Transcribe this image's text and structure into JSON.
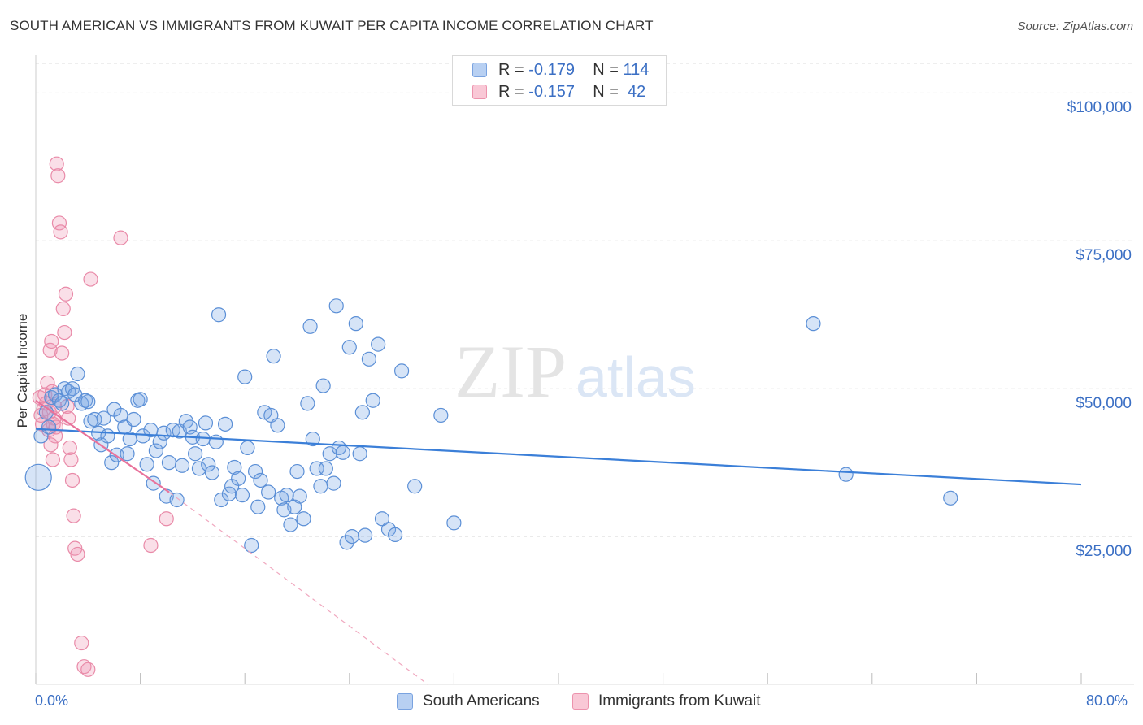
{
  "title": "SOUTH AMERICAN VS IMMIGRANTS FROM KUWAIT PER CAPITA INCOME CORRELATION CHART",
  "source": "Source: ZipAtlas.com",
  "watermark": {
    "zip": "ZIP",
    "atlas": "atlas"
  },
  "legend": {
    "r_label": "R =",
    "n_label": "N =",
    "series": [
      {
        "r": "-0.179",
        "n": "114",
        "fill": "#b8d0f2",
        "stroke": "#7aa3e0"
      },
      {
        "r": "-0.157",
        "n": "42",
        "fill": "#f9c8d6",
        "stroke": "#ec93ad"
      }
    ]
  },
  "bottom_legend": {
    "south": "South Americans",
    "kuwait": "Immigrants from Kuwait"
  },
  "colors": {
    "blue": "#3b7fd8",
    "blue_fill": "rgba(120,165,230,0.30)",
    "blue_stroke": "#5b8fd6",
    "pink": "#e8729b",
    "pink_fill": "rgba(240,150,180,0.30)",
    "pink_stroke": "#e98aa8",
    "axis_text": "#3b6fc4"
  },
  "chart_data": {
    "type": "scatter",
    "title": "SOUTH AMERICAN VS IMMIGRANTS FROM KUWAIT PER CAPITA INCOME CORRELATION CHART",
    "xlabel": "",
    "ylabel": "Per Capita Income",
    "xlim": [
      0,
      80
    ],
    "ylim": [
      0,
      105000
    ],
    "x_tick_labels": {
      "min": "0.0%",
      "max": "80.0%"
    },
    "y_ticks": [
      {
        "value": 25000,
        "label": "$25,000"
      },
      {
        "value": 50000,
        "label": "$50,000"
      },
      {
        "value": 75000,
        "label": "$75,000"
      },
      {
        "value": 100000,
        "label": "$100,000"
      }
    ],
    "series": [
      {
        "name": "South Americans",
        "r": -0.179,
        "n": 114,
        "trend": {
          "x0": 0,
          "y0": 43200,
          "x1": 80,
          "y1": 33800
        },
        "points": [
          [
            0.2,
            35000
          ],
          [
            0.4,
            42000
          ],
          [
            0.8,
            46000
          ],
          [
            1.0,
            43500
          ],
          [
            1.2,
            48500
          ],
          [
            1.5,
            49000
          ],
          [
            1.8,
            48000
          ],
          [
            2.0,
            47500
          ],
          [
            2.2,
            50000
          ],
          [
            2.5,
            49500
          ],
          [
            2.8,
            50000
          ],
          [
            3.0,
            49000
          ],
          [
            3.2,
            52500
          ],
          [
            3.5,
            47500
          ],
          [
            3.8,
            48000
          ],
          [
            4.0,
            47800
          ],
          [
            4.2,
            44500
          ],
          [
            4.5,
            44800
          ],
          [
            4.8,
            42500
          ],
          [
            5.0,
            40500
          ],
          [
            5.2,
            45000
          ],
          [
            5.5,
            42000
          ],
          [
            5.8,
            37500
          ],
          [
            6.0,
            46500
          ],
          [
            6.2,
            38800
          ],
          [
            6.5,
            45500
          ],
          [
            6.8,
            43500
          ],
          [
            7.0,
            39000
          ],
          [
            7.2,
            41500
          ],
          [
            7.5,
            44800
          ],
          [
            7.8,
            48000
          ],
          [
            8.0,
            48200
          ],
          [
            8.2,
            42000
          ],
          [
            8.5,
            37200
          ],
          [
            8.8,
            43000
          ],
          [
            9.0,
            34000
          ],
          [
            9.2,
            39500
          ],
          [
            9.5,
            41000
          ],
          [
            9.8,
            42500
          ],
          [
            10.0,
            31800
          ],
          [
            10.2,
            37500
          ],
          [
            10.5,
            43000
          ],
          [
            10.8,
            31200
          ],
          [
            11.0,
            42800
          ],
          [
            11.2,
            37000
          ],
          [
            11.5,
            44500
          ],
          [
            11.8,
            43500
          ],
          [
            12.0,
            41800
          ],
          [
            12.2,
            39000
          ],
          [
            12.5,
            36500
          ],
          [
            12.8,
            41500
          ],
          [
            13.0,
            44200
          ],
          [
            13.2,
            37200
          ],
          [
            13.5,
            35800
          ],
          [
            13.8,
            41000
          ],
          [
            14.0,
            62500
          ],
          [
            14.2,
            31200
          ],
          [
            14.5,
            44000
          ],
          [
            14.8,
            32200
          ],
          [
            15.0,
            33500
          ],
          [
            15.2,
            36700
          ],
          [
            15.5,
            34800
          ],
          [
            15.8,
            32000
          ],
          [
            16.0,
            52000
          ],
          [
            16.2,
            40000
          ],
          [
            16.5,
            23500
          ],
          [
            16.8,
            36000
          ],
          [
            17.0,
            30000
          ],
          [
            17.2,
            34500
          ],
          [
            17.5,
            46000
          ],
          [
            17.8,
            32500
          ],
          [
            18.0,
            45500
          ],
          [
            18.2,
            55500
          ],
          [
            18.5,
            43800
          ],
          [
            18.8,
            31500
          ],
          [
            19.0,
            29500
          ],
          [
            19.2,
            32000
          ],
          [
            19.5,
            27000
          ],
          [
            19.8,
            30000
          ],
          [
            20.0,
            36000
          ],
          [
            20.2,
            31800
          ],
          [
            20.5,
            28000
          ],
          [
            20.8,
            47500
          ],
          [
            21.0,
            60500
          ],
          [
            21.2,
            41500
          ],
          [
            21.5,
            36500
          ],
          [
            21.8,
            33500
          ],
          [
            22.0,
            50500
          ],
          [
            22.2,
            36500
          ],
          [
            22.5,
            39000
          ],
          [
            22.8,
            34000
          ],
          [
            23.0,
            64000
          ],
          [
            23.2,
            40000
          ],
          [
            23.5,
            39200
          ],
          [
            23.8,
            24000
          ],
          [
            24.0,
            57000
          ],
          [
            24.2,
            25000
          ],
          [
            24.5,
            61000
          ],
          [
            24.8,
            39000
          ],
          [
            25.0,
            46000
          ],
          [
            25.2,
            25200
          ],
          [
            25.5,
            55000
          ],
          [
            25.8,
            48000
          ],
          [
            26.2,
            57500
          ],
          [
            26.5,
            28000
          ],
          [
            27.0,
            26200
          ],
          [
            27.5,
            25300
          ],
          [
            28.0,
            53000
          ],
          [
            29.0,
            33500
          ],
          [
            31.0,
            45500
          ],
          [
            32.0,
            27300
          ],
          [
            59.5,
            61000
          ],
          [
            62.0,
            35500
          ],
          [
            70.0,
            31500
          ]
        ]
      },
      {
        "name": "Immigrants from Kuwait",
        "r": -0.157,
        "n": 42,
        "trend": {
          "x0": 0,
          "y0": 48000,
          "x1": 10.2,
          "y1": 32500,
          "dash_x1": 30,
          "dash_y1": 0
        },
        "points": [
          [
            0.3,
            48500
          ],
          [
            0.4,
            45500
          ],
          [
            0.5,
            44000
          ],
          [
            0.6,
            46500
          ],
          [
            0.7,
            49000
          ],
          [
            0.8,
            47500
          ],
          [
            0.9,
            51000
          ],
          [
            1.0,
            43000
          ],
          [
            1.1,
            56500
          ],
          [
            1.2,
            58000
          ],
          [
            1.3,
            38000
          ],
          [
            1.4,
            45000
          ],
          [
            1.5,
            42000
          ],
          [
            1.6,
            88000
          ],
          [
            1.7,
            86000
          ],
          [
            1.8,
            78000
          ],
          [
            1.9,
            76500
          ],
          [
            2.0,
            56000
          ],
          [
            2.1,
            63500
          ],
          [
            2.2,
            59500
          ],
          [
            2.3,
            66000
          ],
          [
            2.4,
            47000
          ],
          [
            2.5,
            45000
          ],
          [
            2.6,
            40000
          ],
          [
            2.7,
            38000
          ],
          [
            2.8,
            34500
          ],
          [
            2.9,
            28500
          ],
          [
            3.0,
            23000
          ],
          [
            3.2,
            22000
          ],
          [
            3.5,
            7000
          ],
          [
            3.7,
            3000
          ],
          [
            4.0,
            2500
          ],
          [
            1.05,
            46000
          ],
          [
            1.15,
            40500
          ],
          [
            1.25,
            49500
          ],
          [
            1.35,
            44000
          ],
          [
            1.45,
            47000
          ],
          [
            1.55,
            43500
          ],
          [
            4.2,
            68500
          ],
          [
            6.5,
            75500
          ],
          [
            8.8,
            23500
          ],
          [
            10.0,
            28000
          ]
        ]
      }
    ]
  }
}
